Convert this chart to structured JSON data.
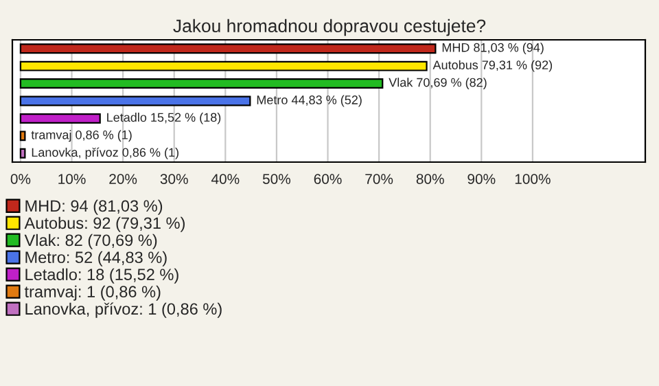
{
  "chart_data": {
    "type": "bar",
    "orientation": "horizontal",
    "title": "Jakou hromadnou dopravou cestujete?",
    "categories": [
      null,
      null,
      null,
      null,
      null,
      null,
      null
    ],
    "series": [
      {
        "name": "MHD: 94 (81,03 %)",
        "color": "#c0281c",
        "values": [
          81.03,
          null,
          null,
          null,
          null,
          null,
          null
        ],
        "value_labels": [
          "MHD 81,03 % (94)",
          null,
          null,
          null,
          null,
          null,
          null
        ]
      },
      {
        "name": "Autobus: 92 (79,31 %)",
        "color": "#ffe600",
        "values": [
          null,
          79.31,
          null,
          null,
          null,
          null,
          null
        ],
        "value_labels": [
          null,
          "Autobus 79,31 % (92)",
          null,
          null,
          null,
          null,
          null
        ]
      },
      {
        "name": "Vlak: 82 (70,69 %)",
        "color": "#22bb22",
        "values": [
          null,
          null,
          70.69,
          null,
          null,
          null,
          null
        ],
        "value_labels": [
          null,
          null,
          "Vlak 70,69 % (82)",
          null,
          null,
          null,
          null
        ]
      },
      {
        "name": "Metro: 52 (44,83 %)",
        "color": "#4a73e8",
        "values": [
          null,
          null,
          null,
          44.83,
          null,
          null,
          null
        ],
        "value_labels": [
          null,
          null,
          null,
          "Metro 44,83 % (52)",
          null,
          null,
          null
        ]
      },
      {
        "name": "Letadlo: 18 (15,52 %)",
        "color": "#c020c8",
        "values": [
          null,
          null,
          null,
          null,
          15.52,
          null,
          null
        ],
        "value_labels": [
          null,
          null,
          null,
          null,
          "Letadlo 15,52 % (18)",
          null,
          null
        ]
      },
      {
        "name": "tramvaj: 1 (0,86 %)",
        "color": "#e07a10",
        "values": [
          null,
          null,
          null,
          null,
          null,
          0.86,
          null
        ],
        "value_labels": [
          null,
          null,
          null,
          null,
          null,
          "tramvaj 0,86 % (1)",
          null
        ]
      },
      {
        "name": "Lanovka, přívoz: 1 (0,86 %)",
        "color": "#c070c0",
        "values": [
          null,
          null,
          null,
          null,
          null,
          null,
          0.86
        ],
        "value_labels": [
          null,
          null,
          null,
          null,
          null,
          null,
          "Lanovka, přívoz 0,86 % (1)"
        ]
      }
    ],
    "xlim": [
      -1.6,
      122
    ],
    "xticks": [
      {
        "value": 0,
        "label": "0%"
      },
      {
        "value": 10,
        "label": "10%"
      },
      {
        "value": 20,
        "label": "20%"
      },
      {
        "value": 30,
        "label": "30%"
      },
      {
        "value": 40,
        "label": "40%"
      },
      {
        "value": 50,
        "label": "50%"
      },
      {
        "value": 60,
        "label": "60%"
      },
      {
        "value": 70,
        "label": "70%"
      },
      {
        "value": 80,
        "label": "80%"
      },
      {
        "value": 90,
        "label": "90%"
      },
      {
        "value": 100,
        "label": "100%"
      }
    ],
    "grid": "x",
    "legend": "bottom"
  }
}
